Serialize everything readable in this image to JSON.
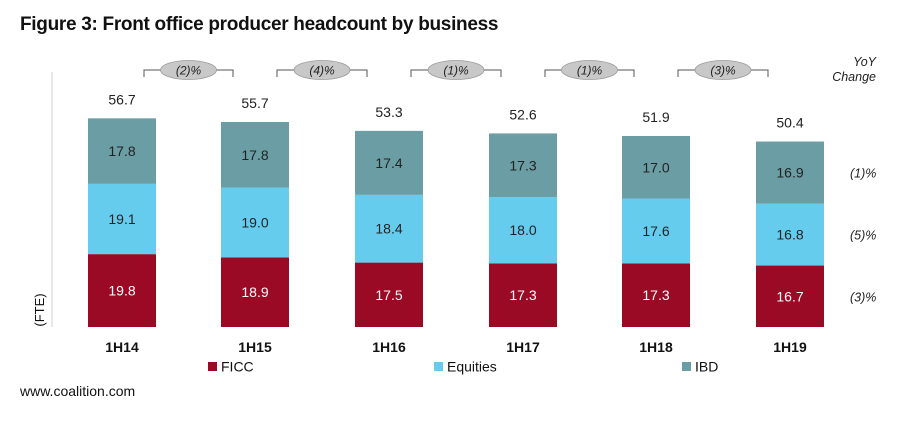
{
  "title": "Figure 3: Front office producer headcount by business",
  "source": "www.coalition.com",
  "chart_data": {
    "type": "bar",
    "stacked": true,
    "ylabel": "(FTE)",
    "categories": [
      "1H14",
      "1H15",
      "1H16",
      "1H17",
      "1H18",
      "1H19"
    ],
    "series": [
      {
        "name": "FICC",
        "color": "#9b0a24",
        "values": [
          19.8,
          18.9,
          17.5,
          17.3,
          17.3,
          16.7
        ]
      },
      {
        "name": "Equities",
        "color": "#66ccee",
        "values": [
          19.1,
          19.0,
          18.4,
          18.0,
          17.6,
          16.8
        ]
      },
      {
        "name": "IBD",
        "color": "#6a9ea4",
        "values": [
          17.8,
          17.8,
          17.4,
          17.3,
          17.0,
          16.9
        ]
      }
    ],
    "totals": [
      "56.7",
      "55.7",
      "53.3",
      "52.6",
      "51.9",
      "50.4"
    ],
    "yoy_header": [
      "YoY",
      "Change"
    ],
    "yoy_changes": [
      "(2)%",
      "(4)%",
      "(1)%",
      "(1)%",
      "(3)%"
    ],
    "series_yoy": [
      "(3)%",
      "(5)%",
      "(1)%"
    ],
    "legend_position": "bottom",
    "grid": false
  }
}
